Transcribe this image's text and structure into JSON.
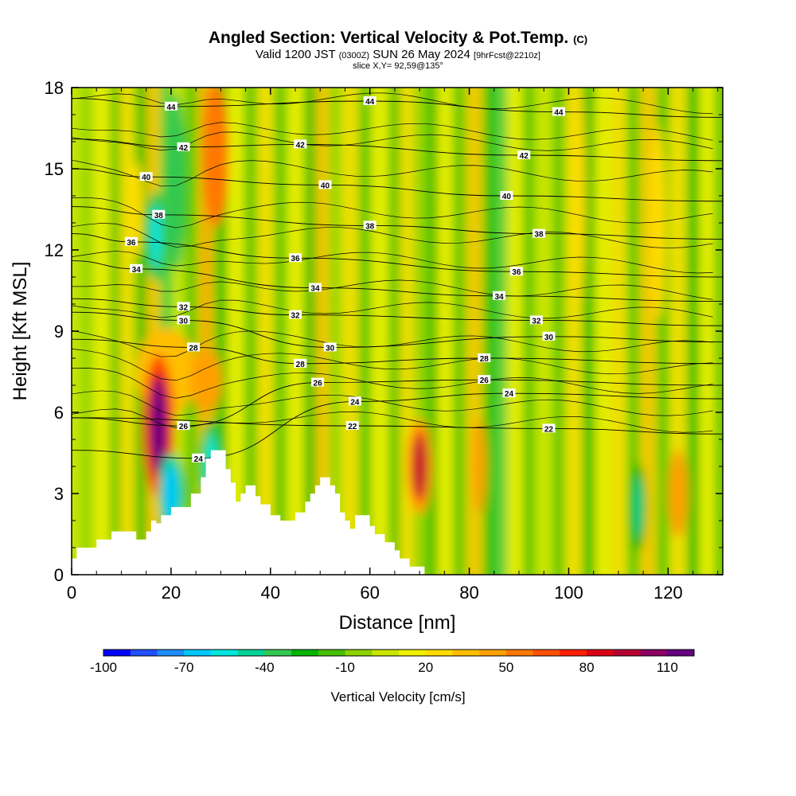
{
  "header": {
    "title": "Angled Section: Vertical Velocity & Pot.Temp.",
    "copyright": "(C)",
    "valid": "Valid 1200 JST",
    "valid_z": "(0300Z)",
    "date": "SUN 26 May 2024",
    "fcst": "[9hrFcst@2210z]",
    "slice": "slice X,Y= 92,59@135°"
  },
  "chart_data": {
    "type": "heatmap",
    "xlabel": "Distance [nm]",
    "ylabel": "Height [Kft MSL]",
    "xlim": [
      0,
      131
    ],
    "ylim": [
      0,
      18
    ],
    "xticks": [
      0,
      20,
      40,
      60,
      80,
      100,
      120
    ],
    "yticks": [
      0,
      3,
      6,
      9,
      12,
      15,
      18
    ],
    "colorbar": {
      "title": "Vertical Velocity [cm/s]",
      "range": [
        -100,
        120
      ],
      "step": 10,
      "labels": [
        -100,
        -70,
        -40,
        -10,
        20,
        50,
        80,
        110
      ],
      "colors": [
        "#0000ff",
        "#1e50ff",
        "#1e8cff",
        "#00c8ff",
        "#00e6dc",
        "#00d296",
        "#32c850",
        "#00b400",
        "#46be00",
        "#8cd200",
        "#c8e600",
        "#f0f000",
        "#ffdc00",
        "#ffbe00",
        "#ffa000",
        "#ff7800",
        "#ff5000",
        "#ff1e00",
        "#dc0014",
        "#b40032",
        "#8c0064",
        "#640082"
      ]
    },
    "vertical_velocity_features": [
      {
        "x": 17.5,
        "y": 5.5,
        "value": 110
      },
      {
        "x": 20,
        "y": 3,
        "value": -70
      },
      {
        "x": 28,
        "y": 4,
        "value": -60
      },
      {
        "x": 17,
        "y": 12.5,
        "value": -60
      },
      {
        "x": 70,
        "y": 4,
        "value": 90
      },
      {
        "x": 114,
        "y": 2.5,
        "value": -50
      }
    ],
    "isentrope_labels": [
      {
        "value": "44",
        "x": 20,
        "y": 17.3
      },
      {
        "value": "44",
        "x": 60,
        "y": 17.5
      },
      {
        "value": "44",
        "x": 98,
        "y": 17.1
      },
      {
        "value": "42",
        "x": 22.5,
        "y": 15.8
      },
      {
        "value": "42",
        "x": 46,
        "y": 15.9
      },
      {
        "value": "42",
        "x": 91,
        "y": 15.5
      },
      {
        "value": "40",
        "x": 15,
        "y": 14.7
      },
      {
        "value": "40",
        "x": 51,
        "y": 14.4
      },
      {
        "value": "40",
        "x": 87.5,
        "y": 14.0
      },
      {
        "value": "38",
        "x": 17.5,
        "y": 13.3
      },
      {
        "value": "38",
        "x": 60,
        "y": 12.9
      },
      {
        "value": "38",
        "x": 94,
        "y": 12.6
      },
      {
        "value": "36",
        "x": 12,
        "y": 12.3
      },
      {
        "value": "36",
        "x": 45,
        "y": 11.7
      },
      {
        "value": "36",
        "x": 89.5,
        "y": 11.2
      },
      {
        "value": "34",
        "x": 13,
        "y": 11.3
      },
      {
        "value": "34",
        "x": 49,
        "y": 10.6
      },
      {
        "value": "34",
        "x": 86,
        "y": 10.3
      },
      {
        "value": "32",
        "x": 22.5,
        "y": 9.9
      },
      {
        "value": "32",
        "x": 45,
        "y": 9.6
      },
      {
        "value": "32",
        "x": 93.5,
        "y": 9.4
      },
      {
        "value": "30",
        "x": 22.5,
        "y": 9.4
      },
      {
        "value": "30",
        "x": 52,
        "y": 8.4
      },
      {
        "value": "30",
        "x": 96,
        "y": 8.8
      },
      {
        "value": "28",
        "x": 24.5,
        "y": 8.4
      },
      {
        "value": "28",
        "x": 46,
        "y": 7.8
      },
      {
        "value": "28",
        "x": 83,
        "y": 8.0
      },
      {
        "value": "26",
        "x": 22.5,
        "y": 5.5
      },
      {
        "value": "26",
        "x": 49.5,
        "y": 7.1
      },
      {
        "value": "26",
        "x": 83,
        "y": 7.2
      },
      {
        "value": "24",
        "x": 25.5,
        "y": 4.3
      },
      {
        "value": "24",
        "x": 57,
        "y": 6.4
      },
      {
        "value": "24",
        "x": 88,
        "y": 6.7
      },
      {
        "value": "22",
        "x": 56.5,
        "y": 5.5
      },
      {
        "value": "22",
        "x": 96,
        "y": 5.4
      }
    ],
    "terrain": [
      [
        0,
        0
      ],
      [
        0,
        0.6
      ],
      [
        1,
        0.6
      ],
      [
        1,
        1.0
      ],
      [
        5,
        1.0
      ],
      [
        5,
        1.3
      ],
      [
        8,
        1.3
      ],
      [
        8,
        1.6
      ],
      [
        13,
        1.6
      ],
      [
        13,
        1.3
      ],
      [
        15,
        1.3
      ],
      [
        15,
        1.6
      ],
      [
        16,
        1.6
      ],
      [
        16,
        2.0
      ],
      [
        17,
        2.0
      ],
      [
        17,
        1.9
      ],
      [
        18,
        1.9
      ],
      [
        18,
        2.2
      ],
      [
        20,
        2.2
      ],
      [
        20,
        2.5
      ],
      [
        24,
        2.5
      ],
      [
        24,
        3.0
      ],
      [
        26,
        3.0
      ],
      [
        26,
        3.6
      ],
      [
        27,
        3.6
      ],
      [
        27,
        4.3
      ],
      [
        28,
        4.3
      ],
      [
        28,
        4.6
      ],
      [
        31,
        4.6
      ],
      [
        31,
        3.9
      ],
      [
        32,
        3.9
      ],
      [
        32,
        3.4
      ],
      [
        33,
        3.4
      ],
      [
        33,
        2.7
      ],
      [
        34,
        2.7
      ],
      [
        34,
        3.0
      ],
      [
        35,
        3.0
      ],
      [
        35,
        3.3
      ],
      [
        37,
        3.3
      ],
      [
        37,
        2.9
      ],
      [
        38,
        2.9
      ],
      [
        38,
        2.6
      ],
      [
        40,
        2.6
      ],
      [
        40,
        2.2
      ],
      [
        42,
        2.2
      ],
      [
        42,
        2.0
      ],
      [
        45,
        2.0
      ],
      [
        45,
        2.3
      ],
      [
        47,
        2.3
      ],
      [
        47,
        2.7
      ],
      [
        48,
        2.7
      ],
      [
        48,
        3.0
      ],
      [
        49,
        3.0
      ],
      [
        49,
        3.3
      ],
      [
        50,
        3.3
      ],
      [
        50,
        3.6
      ],
      [
        52,
        3.6
      ],
      [
        52,
        3.3
      ],
      [
        53,
        3.3
      ],
      [
        53,
        3.0
      ],
      [
        54,
        3.0
      ],
      [
        54,
        2.3
      ],
      [
        55,
        2.3
      ],
      [
        55,
        2.0
      ],
      [
        56,
        2.0
      ],
      [
        56,
        1.7
      ],
      [
        57,
        1.7
      ],
      [
        57,
        2.2
      ],
      [
        58,
        2.2
      ],
      [
        58,
        2.2
      ],
      [
        60,
        2.2
      ],
      [
        60,
        1.8
      ],
      [
        61,
        1.8
      ],
      [
        61,
        1.5
      ],
      [
        63,
        1.5
      ],
      [
        63,
        1.2
      ],
      [
        65,
        1.2
      ],
      [
        65,
        0.9
      ],
      [
        66,
        0.9
      ],
      [
        66,
        0.6
      ],
      [
        68,
        0.6
      ],
      [
        68,
        0.3
      ],
      [
        71,
        0.3
      ],
      [
        71,
        0
      ],
      [
        131,
        0
      ]
    ]
  }
}
